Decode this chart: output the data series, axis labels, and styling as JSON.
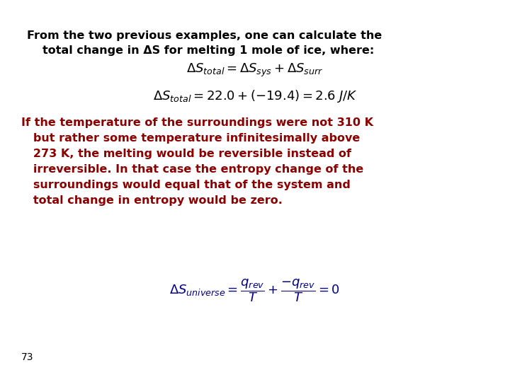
{
  "background_color": "#ffffff",
  "title_text_line1": "From the two previous examples, one can calculate the",
  "title_text_line2": "total change in ΔS for melting 1 mole of ice, where:",
  "formula1": "$\\Delta S_{total} = \\Delta S_{sys} + \\Delta S_{surr}$",
  "formula2": "$\\Delta S_{total} = 22.0 + (-19.4) =  2.6\\;J/K$",
  "body_text_lines": [
    "If the temperature of the surroundings were not 310 K",
    "   but rather some temperature infinitesimally above",
    "   273 K, the melting would be reversible instead of",
    "   irreversible. In that case the entropy change of the",
    "   surroundings would equal that of the system and",
    "   total change in entropy would be zero."
  ],
  "formula3": "$\\Delta S_{universe} = \\dfrac{q_{rev}}{T} + \\dfrac{-q_{rev}}{T} = 0$",
  "page_number": "73",
  "black_color": "#000000",
  "dark_red_color": "#8B0000",
  "dark_blue_color": "#00008B",
  "title_fontsize": 11.5,
  "body_fontsize": 11.5,
  "formula_fontsize": 13,
  "formula3_fontsize": 13,
  "page_num_fontsize": 10
}
